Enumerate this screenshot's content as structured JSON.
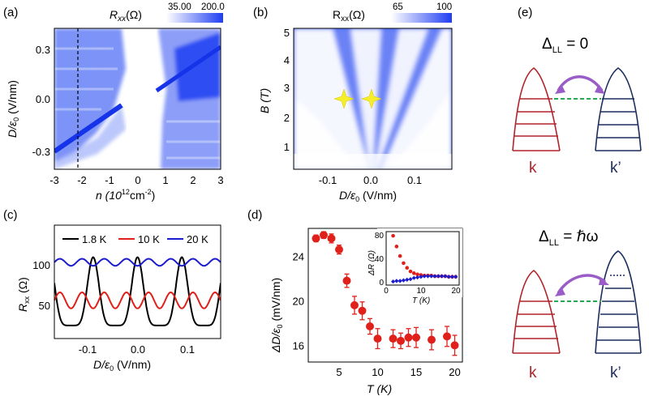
{
  "figure": {
    "panels": {
      "a": {
        "label": "(a)",
        "colorbar_title": "R",
        "colorbar_title_sub": "xx",
        "colorbar_title_unit": "(Ω)",
        "colorbar_min": "35.00",
        "colorbar_max": "200.0",
        "xlabel_main": "n (10",
        "xlabel_sup": "12",
        "xlabel_tail": "cm",
        "xlabel_sup2": "-2",
        "xlabel_end": ")",
        "ylabel": "D/ε",
        "ylabel_sub": "0",
        "ylabel_unit": " (V/nm)",
        "xticks": [
          "-3",
          "-2",
          "-1",
          "0",
          "1",
          "2",
          "3"
        ],
        "yticks": [
          "0.3",
          "0.0",
          "-0.3"
        ]
      },
      "b": {
        "label": "(b)",
        "colorbar_title": "R",
        "colorbar_title_sub": "xx",
        "colorbar_title_unit": "(Ω)",
        "colorbar_min": "65",
        "colorbar_max": "100",
        "xlabel": "D/ε",
        "xlabel_sub": "0",
        "xlabel_unit": " (V/nm)",
        "ylabel": "B (T)",
        "xticks": [
          "-0.1",
          "0.0",
          "0.1"
        ],
        "yticks": [
          "5",
          "4",
          "3",
          "2",
          "1"
        ]
      },
      "c": {
        "label": "(c)",
        "ylabel": "R",
        "ylabel_sub": "xx",
        "ylabel_unit": " (Ω)",
        "xlabel": "D/ε",
        "xlabel_sub": "0",
        "xlabel_unit": " (V/nm)",
        "xticks": [
          "-0.1",
          "0.0",
          "0.1"
        ],
        "yticks": [
          "100",
          "50"
        ],
        "legend": [
          "1.8 K",
          "10 K",
          "20 K"
        ]
      },
      "d": {
        "label": "(d)",
        "ylabel": "ΔD/ε",
        "ylabel_sub": "0",
        "ylabel_unit": " (mV/nm)",
        "xlabel": "T (K)",
        "xticks": [
          "5",
          "10",
          "15",
          "20"
        ],
        "yticks": [
          "24",
          "20",
          "16"
        ],
        "inset": {
          "ylabel": "ΔR (Ω)",
          "xlabel": "T (K)",
          "xticks": [
            "0",
            "10",
            "20"
          ],
          "yticks": [
            "80",
            "40",
            "0"
          ]
        }
      },
      "e": {
        "label": "(e)",
        "top_title": "Δ",
        "top_title_sub": "LL",
        "top_title_tail": " = 0",
        "bottom_title": "Δ",
        "bottom_title_sub": "LL",
        "bottom_title_tail": " = ℏω",
        "valley_left": "k",
        "valley_right": "k’"
      }
    },
    "colors": {
      "map_blue": "#1f3df2",
      "red": "#e0201b",
      "blue_series": "#1b1bd0",
      "dark_red": "#b0242a",
      "navy": "#1c2d5e",
      "purple": "#9a5cc6",
      "green_dash": "#22aa55",
      "star": "#f5ee2a"
    }
  },
  "chart_data": [
    {
      "type": "scatter",
      "panel": "d",
      "xlabel": "T (K)",
      "ylabel": "ΔD/ε0 (mV/nm)",
      "xlim": [
        1,
        21
      ],
      "ylim": [
        14.5,
        26.5
      ],
      "x": [
        2.0,
        3.0,
        4.0,
        5.0,
        6.0,
        7.0,
        8.0,
        9.0,
        10.0,
        12.0,
        13.0,
        14.0,
        15.0,
        17.0,
        19.0,
        20.0
      ],
      "y": [
        25.6,
        25.9,
        25.6,
        24.6,
        21.8,
        19.6,
        19.1,
        17.7,
        16.6,
        16.6,
        16.4,
        16.7,
        16.7,
        16.5,
        16.8,
        16.0
      ],
      "err": [
        0.3,
        0.3,
        0.4,
        0.4,
        0.6,
        0.8,
        0.8,
        0.7,
        0.9,
        0.8,
        0.7,
        0.8,
        0.9,
        0.9,
        0.9,
        0.9
      ]
    },
    {
      "type": "scatter",
      "panel": "d-inset",
      "xlabel": "T (K)",
      "ylabel": "ΔR (Ω)",
      "xlim": [
        0,
        21
      ],
      "ylim": [
        -5,
        85
      ],
      "series": [
        {
          "color": "red",
          "x": [
            2,
            3,
            4,
            5,
            6,
            7,
            8,
            9,
            10,
            11,
            12,
            13,
            14,
            15,
            16,
            17,
            18,
            19,
            20
          ],
          "y": [
            78,
            60,
            44,
            32,
            24,
            18,
            15,
            13,
            12,
            11,
            11,
            11,
            10,
            10,
            10,
            10,
            9,
            9,
            9
          ]
        },
        {
          "color": "blue",
          "x": [
            2,
            3,
            4,
            5,
            6,
            7,
            8,
            9,
            10,
            11,
            12,
            13,
            14,
            15,
            16,
            17,
            18,
            19,
            20
          ],
          "y": [
            1,
            2,
            2,
            3,
            4,
            5,
            7,
            8,
            9,
            10,
            10,
            10,
            10,
            10,
            10,
            10,
            9,
            9,
            9
          ]
        }
      ]
    },
    {
      "type": "line",
      "panel": "c",
      "xlabel": "D/ε0 (V/nm)",
      "ylabel": "Rxx (Ω)",
      "xlim": [
        -0.15,
        0.15
      ],
      "ylim": [
        5,
        118
      ],
      "series": [
        {
          "name": "1.8 K",
          "color": "black",
          "mean": 52,
          "amp": 34,
          "period": 0.08,
          "phase": -0.08,
          "sharp": 3
        },
        {
          "name": "10 K",
          "color": "red",
          "mean": 43,
          "amp": 8,
          "period": 0.04,
          "phase": -0.06,
          "sharp": 1
        },
        {
          "name": "20 K",
          "color": "blue",
          "mean": 81,
          "amp": 3.5,
          "period": 0.04,
          "phase": -0.06,
          "sharp": 1
        }
      ]
    }
  ]
}
